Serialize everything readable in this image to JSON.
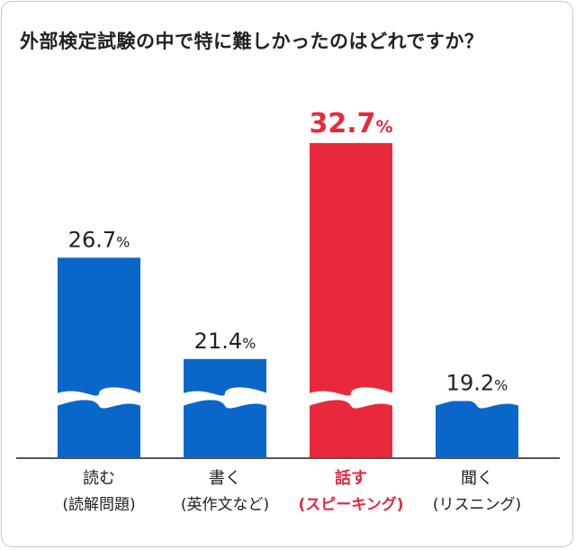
{
  "chart_data": {
    "type": "bar",
    "title": "外部検定試験の中で特に難しかったのはどれですか？",
    "categories": [
      {
        "line1": "読む",
        "line2": "(読解問題)"
      },
      {
        "line1": "書く",
        "line2": "(英作文など)"
      },
      {
        "line1": "話す",
        "line2": "(スピーキング)"
      },
      {
        "line1": "聞く",
        "line2": "(リスニング)"
      }
    ],
    "values": [
      26.7,
      21.4,
      32.7,
      19.2
    ],
    "value_unit": "%",
    "highlight_index": 2,
    "axis_break": true,
    "xlabel": "",
    "ylabel": "",
    "colors": {
      "bar": "#0a67c9",
      "highlight": "#e8293c",
      "text": "#222222",
      "baseline": "#555555"
    }
  }
}
